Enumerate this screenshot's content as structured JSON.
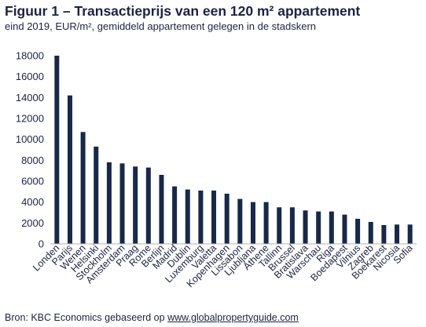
{
  "header": {
    "title": "Figuur 1 – Transactieprijs van een 120 m² appartement",
    "subtitle": "eind 2019, EUR/m², gemiddeld appartement gelegen in de stadskern"
  },
  "footer": {
    "source_prefix": "Bron: KBC Economics gebaseerd op",
    "source_link": "www.globalpropertyguide.com"
  },
  "colors": {
    "bar": "#16294a",
    "axis": "#b0b0b0",
    "text": "#1b2340"
  },
  "chart_data": {
    "type": "bar",
    "title": "Figuur 1 – Transactieprijs van een 120 m² appartement",
    "subtitle": "eind 2019, EUR/m², gemiddeld appartement gelegen in de stadskern",
    "xlabel": "",
    "ylabel": "",
    "ylim": [
      0,
      18000
    ],
    "yticks": [
      0,
      2000,
      4000,
      6000,
      8000,
      10000,
      12000,
      14000,
      16000,
      18000
    ],
    "grid": false,
    "legend": "none",
    "categories": [
      "Londen",
      "Parijs",
      "Wenen",
      "Helsinki",
      "Stockholm",
      "Amsterdam",
      "Praag",
      "Rome",
      "Berlijn",
      "Madrid",
      "Dublin",
      "Luxemburg",
      "Valetta",
      "Kopenhagen",
      "Lissabon",
      "Ljubljana",
      "Athene",
      "Tallinn",
      "Brussel",
      "Bratislava",
      "Warschau",
      "Riga",
      "Boedapest",
      "Vilnius",
      "Zagreb",
      "Boekarest",
      "Nicosia",
      "Sofia"
    ],
    "values": [
      18000,
      14200,
      10700,
      9300,
      7800,
      7700,
      7400,
      7300,
      6600,
      5500,
      5200,
      5100,
      5100,
      4800,
      4300,
      4000,
      4000,
      3500,
      3500,
      3200,
      3100,
      3100,
      2800,
      2400,
      2100,
      1800,
      1850,
      1850
    ]
  }
}
